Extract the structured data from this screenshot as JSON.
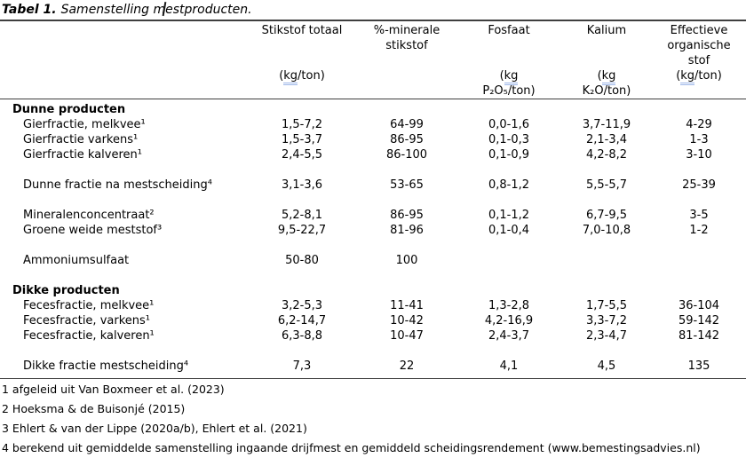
{
  "caption": {
    "label": "Tabel 1.",
    "text": "Samenstelling mestproducten."
  },
  "colors": {
    "rule": "#3f3f3f",
    "grammar_underline": "#9cb6e8",
    "text": "#000000",
    "background": "#ffffff"
  },
  "table": {
    "columns": [
      {
        "key": "product",
        "name": "",
        "unit": ""
      },
      {
        "key": "stikstof-totaal",
        "name": "Stikstof totaal",
        "unit": "(kg/ton)"
      },
      {
        "key": "minerale-stikstof",
        "name": "%-minerale\nstikstof",
        "unit": ""
      },
      {
        "key": "fosfaat",
        "name": "Fosfaat",
        "unit": "(kg\nP₂O₅/ton)"
      },
      {
        "key": "kalium",
        "name": "Kalium",
        "unit": "(kg\nK₂O/ton)"
      },
      {
        "key": "effectieve-organische-stof",
        "name": "Effectieve\norganische\nstof",
        "unit": "(kg/ton)"
      }
    ],
    "rows": [
      {
        "type": "section",
        "label": "Dunne producten",
        "values": [
          "",
          "",
          "",
          "",
          ""
        ]
      },
      {
        "type": "item",
        "label": "Gierfractie, melkvee¹",
        "values": [
          "1,5-7,2",
          "64-99",
          "0,0-1,6",
          "3,7-11,9",
          "4-29"
        ]
      },
      {
        "type": "item",
        "label": "Gierfractie varkens¹",
        "values": [
          "1,5-3,7",
          "86-95",
          "0,1-0,3",
          "2,1-3,4",
          "1-3"
        ]
      },
      {
        "type": "item",
        "label": "Gierfractie kalveren¹",
        "values": [
          "2,4-5,5",
          "86-100",
          "0,1-0,9",
          "4,2-8,2",
          "3-10"
        ]
      },
      {
        "type": "spacer"
      },
      {
        "type": "item",
        "label": "Dunne fractie na mestscheiding⁴",
        "values": [
          "3,1-3,6",
          "53-65",
          "0,8-1,2",
          "5,5-5,7",
          "25-39"
        ]
      },
      {
        "type": "spacer"
      },
      {
        "type": "item",
        "label": "Mineralenconcentraat²",
        "values": [
          "5,2-8,1",
          "86-95",
          "0,1-1,2",
          "6,7-9,5",
          "3-5"
        ]
      },
      {
        "type": "item",
        "label": "Groene weide meststof³",
        "values": [
          "9,5-22,7",
          "81-96",
          "0,1-0,4",
          "7,0-10,8",
          "1-2"
        ]
      },
      {
        "type": "spacer"
      },
      {
        "type": "item",
        "label": "Ammoniumsulfaat",
        "values": [
          "50-80",
          "100",
          "",
          "",
          ""
        ]
      },
      {
        "type": "spacer"
      },
      {
        "type": "section",
        "label": "Dikke producten",
        "values": [
          "",
          "",
          "",
          "",
          ""
        ]
      },
      {
        "type": "item",
        "label": "Fecesfractie, melkvee¹",
        "values": [
          "3,2-5,3",
          "11-41",
          "1,3-2,8",
          "1,7-5,5",
          "36-104"
        ]
      },
      {
        "type": "item",
        "label": "Fecesfractie, varkens¹",
        "values": [
          "6,2-14,7",
          "10-42",
          "4,2-16,9",
          "3,3-7,2",
          "59-142"
        ]
      },
      {
        "type": "item",
        "label": "Fecesfractie, kalveren¹",
        "values": [
          "6,3-8,8",
          "10-47",
          "2,4-3,7",
          "2,3-4,7",
          "81-142"
        ]
      },
      {
        "type": "spacer"
      },
      {
        "type": "item",
        "label": "Dikke fractie mestscheiding⁴",
        "values": [
          "7,3",
          "22",
          "4,1",
          "4,5",
          "135"
        ]
      }
    ]
  },
  "footnotes": [
    "1 afgeleid uit Van Boxmeer et al. (2023)",
    "2 Hoeksma & de Buisonjé (2015)",
    "3 Ehlert & van der Lippe (2020a/b), Ehlert et al. (2021)",
    "4 berekend uit gemiddelde samenstelling ingaande drijfmest en gemiddeld scheidingsrendement (www.bemestingsadvies.nl)"
  ]
}
